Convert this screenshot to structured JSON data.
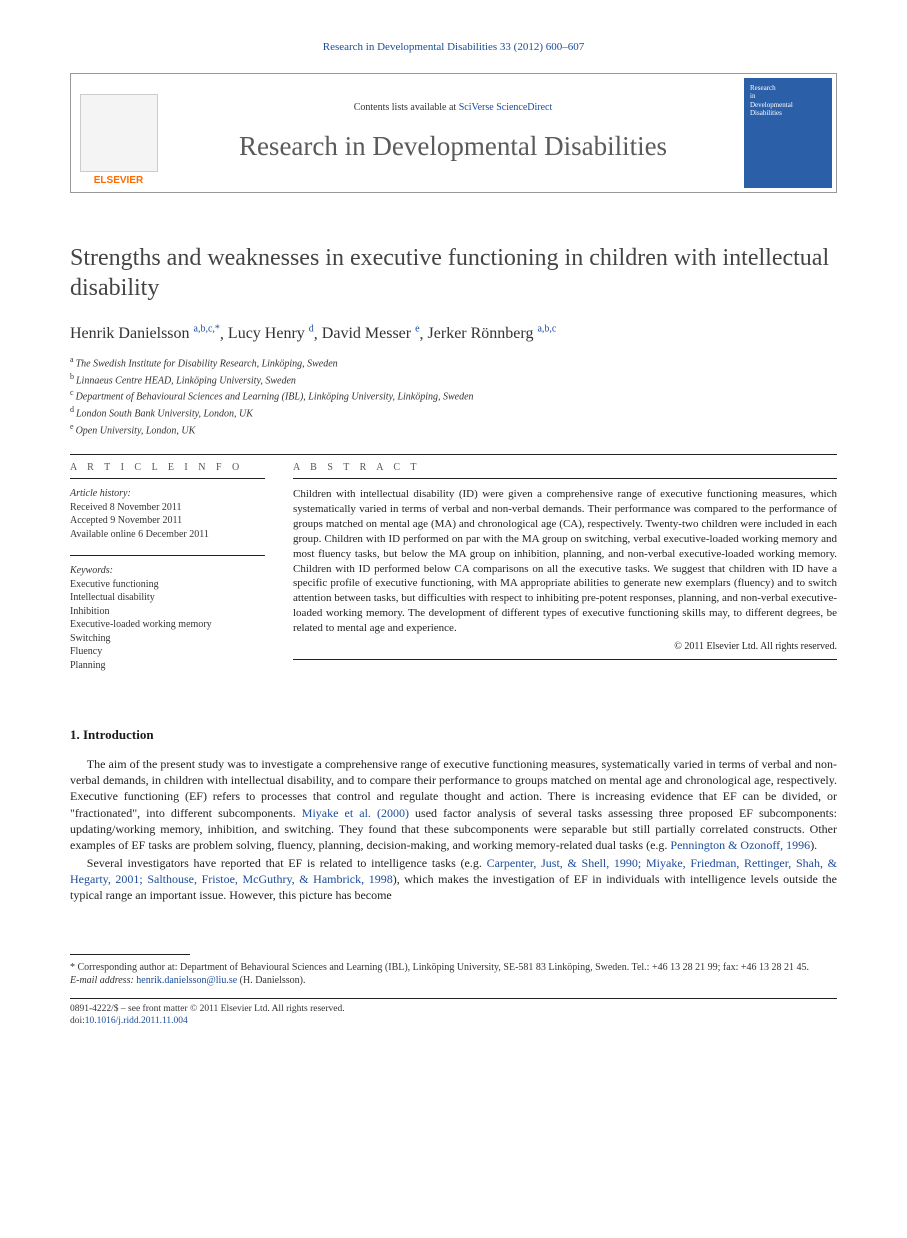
{
  "running_head": "Research in Developmental Disabilities 33 (2012) 600–607",
  "header": {
    "publisher_name": "ELSEVIER",
    "contents_prefix": "Contents lists available at ",
    "contents_link": "SciVerse ScienceDirect",
    "journal_name": "Research in Developmental Disabilities",
    "cover_thumb_line1": "Research",
    "cover_thumb_line2": "in",
    "cover_thumb_line3": "Developmental",
    "cover_thumb_line4": "Disabilities"
  },
  "title": "Strengths and weaknesses in executive functioning in children with intellectual disability",
  "authors_html": [
    {
      "name": "Henrik Danielsson",
      "marks": "a,b,c,*"
    },
    {
      "name": "Lucy Henry",
      "marks": "d"
    },
    {
      "name": "David Messer",
      "marks": "e"
    },
    {
      "name": "Jerker Rönnberg",
      "marks": "a,b,c"
    }
  ],
  "affiliations": [
    {
      "mark": "a",
      "text": "The Swedish Institute for Disability Research, Linköping, Sweden"
    },
    {
      "mark": "b",
      "text": "Linnaeus Centre HEAD, Linköping University, Sweden"
    },
    {
      "mark": "c",
      "text": "Department of Behavioural Sciences and Learning (IBL), Linköping University, Linköping, Sweden"
    },
    {
      "mark": "d",
      "text": "London South Bank University, London, UK"
    },
    {
      "mark": "e",
      "text": "Open University, London, UK"
    }
  ],
  "info_head": "A R T I C L E  I N F O",
  "abs_head": "A B S T R A C T",
  "history": {
    "title": "Article history:",
    "received": "Received 8 November 2011",
    "accepted": "Accepted 9 November 2011",
    "online": "Available online 6 December 2011"
  },
  "keywords": {
    "title": "Keywords:",
    "items": [
      "Executive functioning",
      "Intellectual disability",
      "Inhibition",
      "Executive-loaded working memory",
      "Switching",
      "Fluency",
      "Planning"
    ]
  },
  "abstract": "Children with intellectual disability (ID) were given a comprehensive range of executive functioning measures, which systematically varied in terms of verbal and non-verbal demands. Their performance was compared to the performance of groups matched on mental age (MA) and chronological age (CA), respectively. Twenty-two children were included in each group. Children with ID performed on par with the MA group on switching, verbal executive-loaded working memory and most fluency tasks, but below the MA group on inhibition, planning, and non-verbal executive-loaded working memory. Children with ID performed below CA comparisons on all the executive tasks. We suggest that children with ID have a specific profile of executive functioning, with MA appropriate abilities to generate new exemplars (fluency) and to switch attention between tasks, but difficulties with respect to inhibiting pre-potent responses, planning, and non-verbal executive-loaded working memory. The development of different types of executive functioning skills may, to different degrees, be related to mental age and experience.",
  "copyright": "© 2011 Elsevier Ltd. All rights reserved.",
  "section1": "1. Introduction",
  "para1_a": "The aim of the present study was to investigate a comprehensive range of executive functioning measures, systematically varied in terms of verbal and non-verbal demands, in children with intellectual disability, and to compare their performance to groups matched on mental age and chronological age, respectively. Executive functioning (EF) refers to processes that control and regulate thought and action. There is increasing evidence that EF can be divided, or \"fractionated\", into different subcomponents. ",
  "para1_cite1": "Miyake et al. (2000)",
  "para1_b": " used factor analysis of several tasks assessing three proposed EF subcomponents: updating/working memory, inhibition, and switching. They found that these subcomponents were separable but still partially correlated constructs. Other examples of EF tasks are problem solving, fluency, planning, decision-making, and working memory-related dual tasks (e.g. ",
  "para1_cite2": "Pennington & Ozonoff, 1996",
  "para1_c": ").",
  "para2_a": "Several investigators have reported that EF is related to intelligence tasks (e.g. ",
  "para2_cite1": "Carpenter, Just, & Shell, 1990; Miyake, Friedman, Rettinger, Shah, & Hegarty, 2001; Salthouse, Fristoe, McGuthry, & Hambrick, 1998",
  "para2_b": "), which makes the investigation of EF in individuals with intelligence levels outside the typical range an important issue. However, this picture has become",
  "footnote": {
    "star": "*",
    "corr": " Corresponding author at: Department of Behavioural Sciences and Learning (IBL), Linköping University, SE-581 83 Linköping, Sweden. Tel.: +46 13 28 21 99; fax: +46 13 28 21 45.",
    "email_label": "E-mail address: ",
    "email": "henrik.danielsson@liu.se",
    "email_tail": " (H. Danielsson)."
  },
  "front_matter": {
    "line1": "0891-4222/$ – see front matter © 2011 Elsevier Ltd. All rights reserved.",
    "doi_label": "doi:",
    "doi": "10.1016/j.ridd.2011.11.004"
  },
  "colors": {
    "link": "#1a4b9b",
    "publisher": "#ff6b00",
    "cover_bg": "#2b5fa8",
    "text": "#1a1a1a",
    "title_grey": "#444444"
  }
}
